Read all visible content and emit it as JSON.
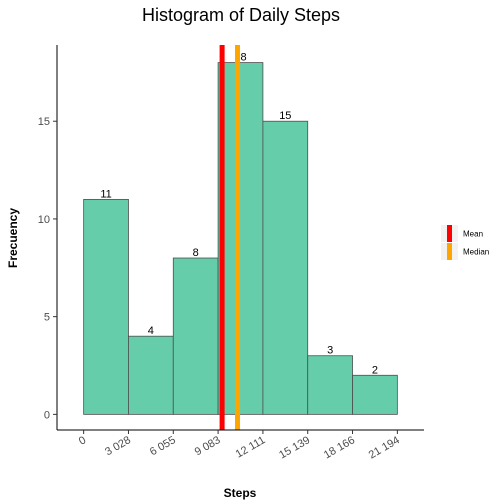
{
  "chart_data": {
    "type": "bar",
    "title": "Histogram of Daily Steps",
    "xlabel": "Steps",
    "ylabel": "Frecuency",
    "bin_edges": [
      0,
      3028,
      6055,
      9083,
      12111,
      15139,
      18166,
      21194
    ],
    "x_tick_labels": [
      "0",
      "3 028",
      "6 055",
      "9 083",
      "12 111",
      "15 139",
      "18 166",
      "21 194"
    ],
    "values": [
      11,
      4,
      8,
      18,
      15,
      3,
      2
    ],
    "y_ticks": [
      0,
      5,
      10,
      15
    ],
    "ylim": [
      -0.8,
      18.9
    ],
    "xlim": [
      -1800,
      22994
    ],
    "bar_color": "#66cdaa",
    "bar_edge_color": "#4d4d4d",
    "lines": [
      {
        "name": "Mean",
        "x": 9354,
        "color": "#ff0000"
      },
      {
        "name": "Median",
        "x": 10395,
        "color": "#ffa500"
      }
    ],
    "legend_position": "right",
    "grid": false
  }
}
